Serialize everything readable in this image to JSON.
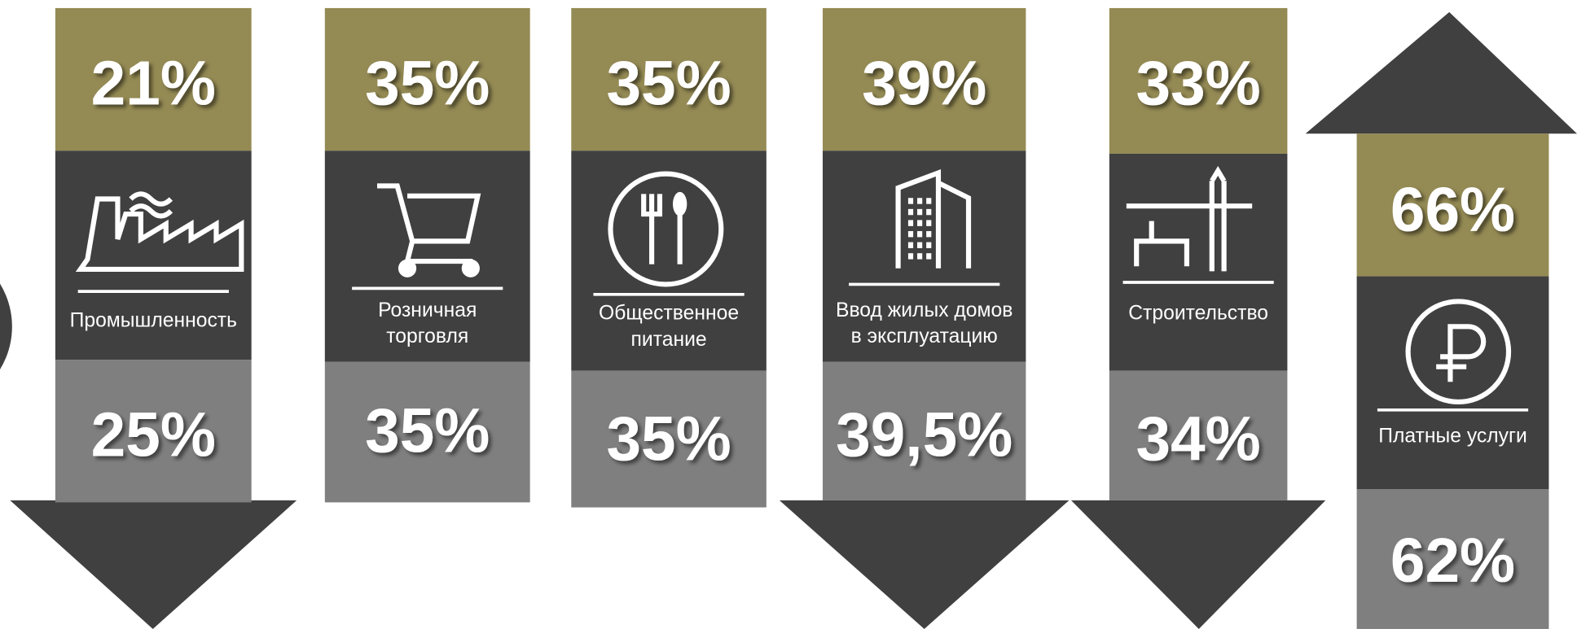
{
  "columns": [
    {
      "top": "21%",
      "label": [
        "Промышленность"
      ],
      "bottom": "25%"
    },
    {
      "top": "35%",
      "label": [
        "Розничная",
        "торговля"
      ],
      "bottom": "35%"
    },
    {
      "top": "35%",
      "label": [
        "Общественное",
        "питание"
      ],
      "bottom": "35%"
    },
    {
      "top": "39%",
      "label": [
        "Ввод жилых домов",
        "в эксплуатацию"
      ],
      "bottom": "39,5%"
    },
    {
      "top": "33%",
      "label": [
        "Строительство"
      ],
      "bottom": "34%"
    },
    {
      "top": "66%",
      "label": [
        "Платные услуги"
      ],
      "bottom": "62%"
    }
  ]
}
